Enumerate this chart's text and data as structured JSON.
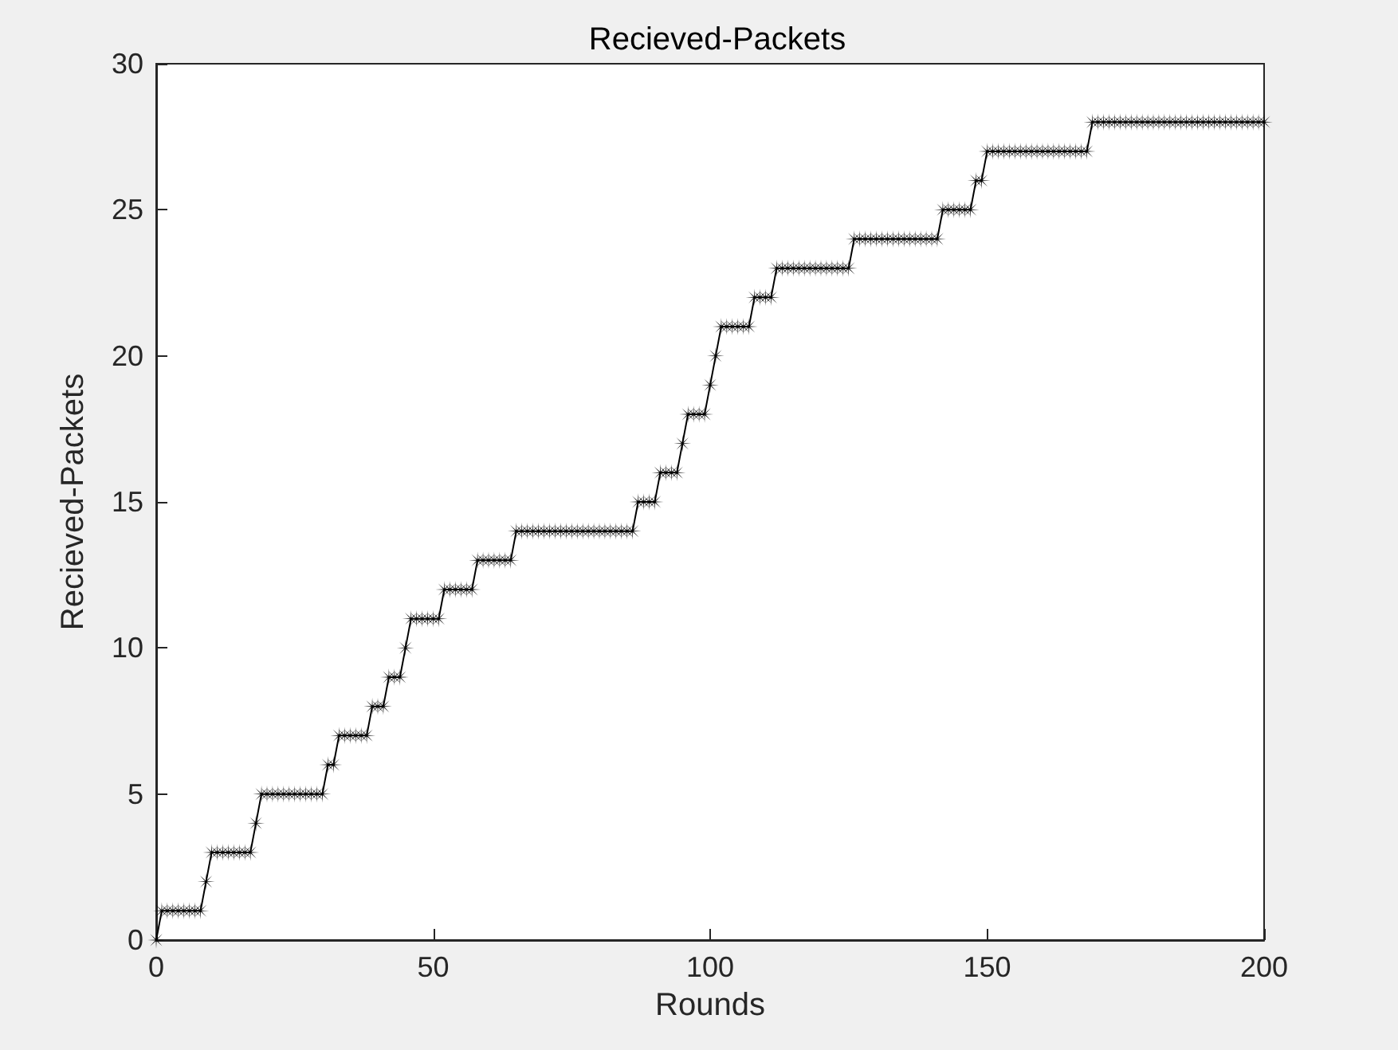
{
  "chart_data": {
    "type": "line",
    "title": "Recieved-Packets",
    "xlabel": "Rounds",
    "ylabel": "Recieved-Packets",
    "x": [
      0,
      1,
      2,
      3,
      4,
      5,
      6,
      7,
      8,
      9,
      10,
      11,
      12,
      13,
      14,
      15,
      16,
      17,
      18,
      19,
      20,
      21,
      22,
      23,
      24,
      25,
      26,
      27,
      28,
      29,
      30,
      31,
      32,
      33,
      34,
      35,
      36,
      37,
      38,
      39,
      40,
      41,
      42,
      43,
      44,
      45,
      46,
      47,
      48,
      49,
      50,
      51,
      52,
      53,
      54,
      55,
      56,
      57,
      58,
      59,
      60,
      61,
      62,
      63,
      64,
      65,
      66,
      67,
      68,
      69,
      70,
      71,
      72,
      73,
      74,
      75,
      76,
      77,
      78,
      79,
      80,
      81,
      82,
      83,
      84,
      85,
      86,
      87,
      88,
      89,
      90,
      91,
      92,
      93,
      94,
      95,
      96,
      97,
      98,
      99,
      100,
      101,
      102,
      103,
      104,
      105,
      106,
      107,
      108,
      109,
      110,
      111,
      112,
      113,
      114,
      115,
      116,
      117,
      118,
      119,
      120,
      121,
      122,
      123,
      124,
      125,
      126,
      127,
      128,
      129,
      130,
      131,
      132,
      133,
      134,
      135,
      136,
      137,
      138,
      139,
      140,
      141,
      142,
      143,
      144,
      145,
      146,
      147,
      148,
      149,
      150,
      151,
      152,
      153,
      154,
      155,
      156,
      157,
      158,
      159,
      160,
      161,
      162,
      163,
      164,
      165,
      166,
      167,
      168,
      169,
      170,
      171,
      172,
      173,
      174,
      175,
      176,
      177,
      178,
      179,
      180,
      181,
      182,
      183,
      184,
      185,
      186,
      187,
      188,
      189,
      190,
      191,
      192,
      193,
      194,
      195,
      196,
      197,
      198,
      199,
      200
    ],
    "values": [
      0,
      1,
      1,
      1,
      1,
      1,
      1,
      1,
      1,
      2,
      3,
      3,
      3,
      3,
      3,
      3,
      3,
      3,
      4,
      5,
      5,
      5,
      5,
      5,
      5,
      5,
      5,
      5,
      5,
      5,
      5,
      6,
      6,
      7,
      7,
      7,
      7,
      7,
      7,
      8,
      8,
      8,
      9,
      9,
      9,
      10,
      11,
      11,
      11,
      11,
      11,
      11,
      12,
      12,
      12,
      12,
      12,
      12,
      13,
      13,
      13,
      13,
      13,
      13,
      13,
      14,
      14,
      14,
      14,
      14,
      14,
      14,
      14,
      14,
      14,
      14,
      14,
      14,
      14,
      14,
      14,
      14,
      14,
      14,
      14,
      14,
      14,
      15,
      15,
      15,
      15,
      16,
      16,
      16,
      16,
      17,
      18,
      18,
      18,
      18,
      19,
      20,
      21,
      21,
      21,
      21,
      21,
      21,
      22,
      22,
      22,
      22,
      23,
      23,
      23,
      23,
      23,
      23,
      23,
      23,
      23,
      23,
      23,
      23,
      23,
      23,
      24,
      24,
      24,
      24,
      24,
      24,
      24,
      24,
      24,
      24,
      24,
      24,
      24,
      24,
      24,
      24,
      25,
      25,
      25,
      25,
      25,
      25,
      26,
      26,
      27,
      27,
      27,
      27,
      27,
      27,
      27,
      27,
      27,
      27,
      27,
      27,
      27,
      27,
      27,
      27,
      27,
      27,
      27,
      28,
      28,
      28,
      28,
      28,
      28,
      28,
      28,
      28,
      28,
      28,
      28,
      28,
      28,
      28,
      28,
      28,
      28,
      28,
      28,
      28,
      28,
      28,
      28,
      28,
      28,
      28,
      28,
      28,
      28,
      28,
      28
    ],
    "color": "#000000",
    "marker": "star",
    "line_style": "solid",
    "grid": false,
    "xlim": [
      0,
      200
    ],
    "xticks": [
      0,
      50,
      100,
      150,
      200
    ],
    "ylim": [
      0,
      30
    ],
    "yticks": [
      0,
      5,
      10,
      15,
      20,
      25,
      30
    ]
  }
}
